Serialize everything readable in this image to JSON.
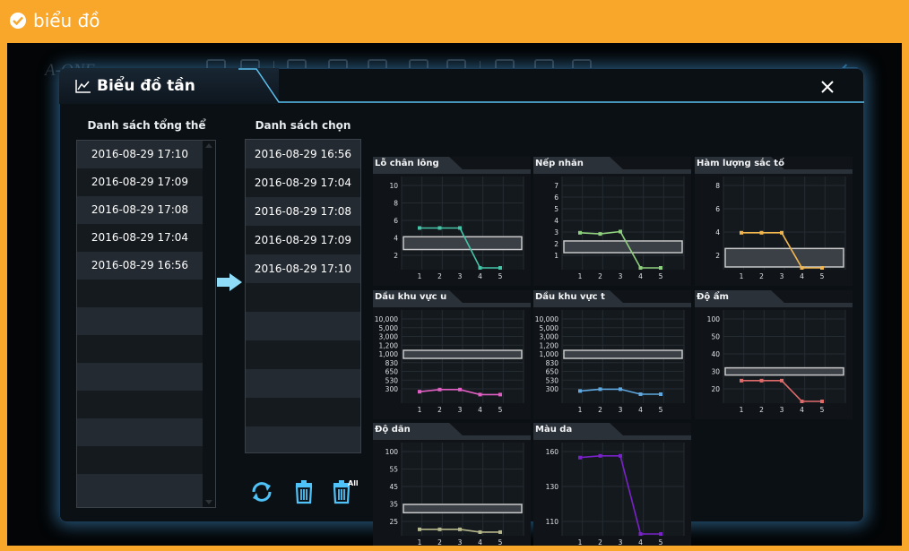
{
  "page": {
    "title": "biểu đồ"
  },
  "background": {
    "logo": "A-ONE"
  },
  "dialog": {
    "title": "Biểu đồ tần",
    "list_total": {
      "header": "Danh sách tổng thể",
      "items": [
        "2016-08-29 17:10",
        "2016-08-29 17:09",
        "2016-08-29 17:08",
        "2016-08-29 17:04",
        "2016-08-29 16:56"
      ]
    },
    "list_selected": {
      "header": "Danh sách chọn",
      "items": [
        "2016-08-29 16:56",
        "2016-08-29 17:04",
        "2016-08-29 17:08",
        "2016-08-29 17:09",
        "2016-08-29 17:10"
      ]
    },
    "actions": {
      "all_label": "All"
    }
  },
  "colors": {
    "accent": "#4fc3f7",
    "panel_bg": "#101418",
    "range_box": "#c8c8c8"
  },
  "chart_data": [
    {
      "type": "line",
      "title": "Lỗ chân lông",
      "x": [
        1,
        2,
        3,
        4,
        5
      ],
      "values": [
        5,
        5,
        5,
        0,
        0
      ],
      "yticks": [
        "10",
        "8",
        "6",
        "4",
        "2"
      ],
      "ylim": [
        0,
        11
      ],
      "range": [
        2.3,
        3.9
      ],
      "color": "#45c4a8"
    },
    {
      "type": "line",
      "title": "Nếp nhăn",
      "x": [
        1,
        2,
        3,
        4,
        5
      ],
      "values": [
        3,
        2.9,
        3.1,
        0,
        0
      ],
      "yticks": [
        "7",
        "6",
        "5",
        "4",
        "3",
        "2",
        "1"
      ],
      "ylim": [
        0,
        7.5
      ],
      "range": [
        1.3,
        2.3
      ],
      "color": "#8fd07e"
    },
    {
      "type": "line",
      "title": "Hàm lượng sắc tố",
      "x": [
        1,
        2,
        3,
        4,
        5
      ],
      "values": [
        3.8,
        3.8,
        3.8,
        0,
        0
      ],
      "yticks": [
        "8",
        "6",
        "4",
        "2"
      ],
      "ylim": [
        0,
        9.5
      ],
      "range": [
        0.1,
        2.1
      ],
      "color": "#f2b64e"
    },
    {
      "type": "line",
      "title": "Dầu khu vực u",
      "x": [
        1,
        2,
        3,
        4,
        5
      ],
      "values": [
        260,
        290,
        290,
        220,
        220
      ],
      "yticks": [
        "10,000",
        "5,000",
        "3,000",
        "1,200",
        "1,000",
        "830",
        "650",
        "530",
        "300"
      ],
      "range_labels": [
        "1,000",
        "830"
      ],
      "color": "#e05fc2"
    },
    {
      "type": "line",
      "title": "Dầu khu vực t",
      "x": [
        1,
        2,
        3,
        4,
        5
      ],
      "values": [
        270,
        295,
        295,
        225,
        225
      ],
      "yticks": [
        "10,000",
        "5,000",
        "3,000",
        "1,200",
        "1,000",
        "830",
        "650",
        "530",
        "300"
      ],
      "range_labels": [
        "1,000",
        "830"
      ],
      "color": "#5fa8e0"
    },
    {
      "type": "line",
      "title": "Độ ẩm",
      "x": [
        1,
        2,
        3,
        4,
        5
      ],
      "values": [
        26,
        26,
        26,
        0,
        0
      ],
      "yticks": [
        "100",
        "50",
        "40",
        "30",
        "20"
      ],
      "ylim": [
        0,
        110
      ],
      "range": [
        33,
        42
      ],
      "color": "#e06b6b"
    },
    {
      "type": "line",
      "title": "Độ dãn",
      "x": [
        1,
        2,
        3,
        4,
        5
      ],
      "values": [
        20,
        20,
        20,
        17,
        17
      ],
      "yticks": [
        "100",
        "55",
        "45",
        "35",
        "25"
      ],
      "ylim": [
        15,
        110
      ],
      "range": [
        38,
        47
      ],
      "color": "#b7b78c"
    },
    {
      "type": "line",
      "title": "Màu da",
      "x": [
        1,
        2,
        3,
        4,
        5
      ],
      "values": [
        167,
        169,
        169,
        80,
        80
      ],
      "yticks": [
        "160",
        "130",
        "110"
      ],
      "ylim": [
        80,
        180
      ],
      "color": "#7a22c9"
    }
  ]
}
